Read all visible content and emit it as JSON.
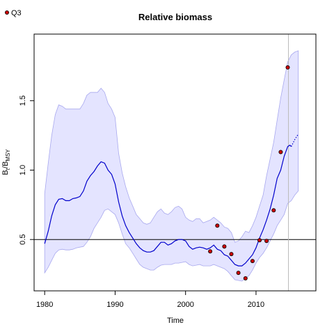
{
  "chart_data": {
    "type": "line",
    "title": "Relative biomass",
    "xlabel": "Time",
    "ylabel": {
      "main": "B",
      "sub1": "t",
      "sep": "/B",
      "sub2": "MSY"
    },
    "xlim": [
      1978.5,
      2018.5
    ],
    "ylim": [
      0.13,
      1.98
    ],
    "x_ticks": [
      1980,
      1990,
      2000,
      2010
    ],
    "x_tick_labels": [
      "1980",
      "1990",
      "2000",
      "2010"
    ],
    "y_ticks": [
      0.5,
      1.0,
      1.5
    ],
    "y_tick_labels": [
      "0.5",
      "1.0",
      "1.5"
    ],
    "reference_hline": 0.5,
    "reference_vline": 2014.6,
    "legend": {
      "position": "top-left",
      "entries": [
        {
          "label": "Q3",
          "color": "#cc0000"
        }
      ]
    },
    "colors": {
      "line": "#0000cc",
      "band_fill": "#e4e4ff",
      "band_stroke": "#a8a8ee",
      "points": "#cc0000",
      "vline": "#bbbbbb"
    },
    "estimate": {
      "x": [
        1980,
        1980.5,
        1981,
        1981.5,
        1982,
        1982.5,
        1983,
        1983.5,
        1984,
        1984.5,
        1985,
        1985.5,
        1986,
        1986.5,
        1987,
        1987.5,
        1988,
        1988.5,
        1989,
        1989.5,
        1990,
        1990.5,
        1991,
        1991.5,
        1992,
        1992.5,
        1993,
        1993.5,
        1994,
        1994.5,
        1995,
        1995.5,
        1996,
        1996.5,
        1997,
        1997.5,
        1998,
        1998.5,
        1999,
        1999.5,
        2000,
        2000.5,
        2001,
        2001.5,
        2002,
        2002.5,
        2003,
        2003.5,
        2004,
        2004.5,
        2005,
        2005.5,
        2006,
        2006.5,
        2007,
        2007.5,
        2008,
        2008.5,
        2009,
        2009.5,
        2010,
        2010.5,
        2011,
        2011.5,
        2012,
        2012.5,
        2013,
        2013.5,
        2014,
        2014.5,
        2014.8,
        2015
      ],
      "y": [
        0.47,
        0.56,
        0.67,
        0.75,
        0.79,
        0.795,
        0.78,
        0.78,
        0.795,
        0.8,
        0.81,
        0.85,
        0.92,
        0.96,
        0.99,
        1.03,
        1.06,
        1.05,
        1.0,
        0.97,
        0.9,
        0.77,
        0.67,
        0.6,
        0.55,
        0.51,
        0.47,
        0.44,
        0.42,
        0.41,
        0.41,
        0.42,
        0.45,
        0.48,
        0.48,
        0.46,
        0.47,
        0.49,
        0.5,
        0.5,
        0.49,
        0.45,
        0.43,
        0.44,
        0.445,
        0.44,
        0.43,
        0.44,
        0.46,
        0.43,
        0.42,
        0.39,
        0.38,
        0.35,
        0.32,
        0.31,
        0.31,
        0.33,
        0.36,
        0.39,
        0.44,
        0.51,
        0.57,
        0.64,
        0.72,
        0.82,
        0.94,
        1.0,
        1.1,
        1.17,
        1.18,
        1.17
      ]
    },
    "projection": {
      "x": [
        2015,
        2015.5,
        2016
      ],
      "y": [
        1.17,
        1.22,
        1.26
      ]
    },
    "uncertainty_band": {
      "x": [
        1980,
        1980.5,
        1981,
        1981.5,
        1982,
        1982.5,
        1983,
        1983.5,
        1984,
        1984.5,
        1985,
        1985.5,
        1986,
        1986.5,
        1987,
        1987.5,
        1988,
        1988.5,
        1989,
        1989.5,
        1990,
        1990.5,
        1991,
        1991.5,
        1992,
        1992.5,
        1993,
        1993.5,
        1994,
        1994.5,
        1995,
        1995.5,
        1996,
        1996.5,
        1997,
        1997.5,
        1998,
        1998.5,
        1999,
        1999.5,
        2000,
        2000.5,
        2001,
        2001.5,
        2002,
        2002.5,
        2003,
        2003.5,
        2004,
        2004.5,
        2005,
        2005.5,
        2006,
        2006.5,
        2007,
        2007.5,
        2008,
        2008.5,
        2009,
        2009.5,
        2010,
        2010.5,
        2011,
        2011.5,
        2012,
        2012.5,
        2013,
        2013.5,
        2014,
        2014.5,
        2015,
        2015.5,
        2016
      ],
      "upper": [
        0.83,
        1.05,
        1.25,
        1.4,
        1.47,
        1.46,
        1.44,
        1.44,
        1.44,
        1.44,
        1.44,
        1.48,
        1.54,
        1.56,
        1.56,
        1.56,
        1.59,
        1.56,
        1.48,
        1.44,
        1.38,
        1.12,
        0.98,
        0.88,
        0.8,
        0.74,
        0.68,
        0.65,
        0.62,
        0.61,
        0.62,
        0.66,
        0.7,
        0.72,
        0.69,
        0.68,
        0.7,
        0.73,
        0.74,
        0.72,
        0.66,
        0.64,
        0.63,
        0.65,
        0.65,
        0.62,
        0.63,
        0.64,
        0.66,
        0.64,
        0.62,
        0.59,
        0.58,
        0.55,
        0.48,
        0.49,
        0.52,
        0.56,
        0.55,
        0.6,
        0.66,
        0.74,
        0.82,
        0.96,
        1.08,
        1.2,
        1.36,
        1.52,
        1.65,
        1.78,
        1.83,
        1.85,
        1.86
      ],
      "lower": [
        0.26,
        0.3,
        0.35,
        0.4,
        0.425,
        0.43,
        0.425,
        0.425,
        0.43,
        0.44,
        0.445,
        0.45,
        0.48,
        0.52,
        0.58,
        0.62,
        0.66,
        0.71,
        0.72,
        0.7,
        0.68,
        0.62,
        0.54,
        0.47,
        0.44,
        0.4,
        0.36,
        0.32,
        0.3,
        0.29,
        0.28,
        0.28,
        0.3,
        0.315,
        0.32,
        0.32,
        0.32,
        0.33,
        0.33,
        0.335,
        0.34,
        0.32,
        0.31,
        0.315,
        0.32,
        0.31,
        0.31,
        0.31,
        0.32,
        0.31,
        0.3,
        0.29,
        0.27,
        0.24,
        0.21,
        0.205,
        0.2,
        0.22,
        0.24,
        0.28,
        0.33,
        0.37,
        0.4,
        0.44,
        0.49,
        0.54,
        0.6,
        0.64,
        0.68,
        0.76,
        0.78,
        0.82,
        0.85
      ]
    },
    "series": [
      {
        "name": "Q3",
        "type": "scatter",
        "x": [
          2003.5,
          2004.5,
          2005.5,
          2006.5,
          2007.5,
          2008.5,
          2009.5,
          2010.5,
          2011.5,
          2012.5,
          2013.5,
          2014.5
        ],
        "y": [
          0.415,
          0.6,
          0.45,
          0.395,
          0.26,
          0.22,
          0.345,
          0.495,
          0.49,
          0.71,
          1.13,
          1.74
        ]
      }
    ]
  }
}
